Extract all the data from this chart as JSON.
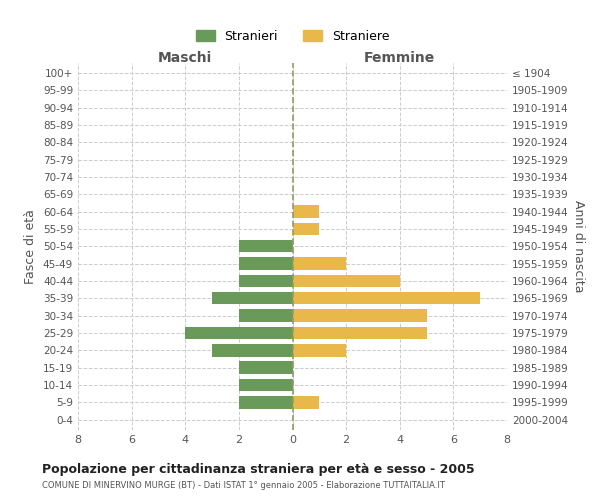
{
  "age_groups": [
    "0-4",
    "5-9",
    "10-14",
    "15-19",
    "20-24",
    "25-29",
    "30-34",
    "35-39",
    "40-44",
    "45-49",
    "50-54",
    "55-59",
    "60-64",
    "65-69",
    "70-74",
    "75-79",
    "80-84",
    "85-89",
    "90-94",
    "95-99",
    "100+"
  ],
  "birth_years": [
    "2000-2004",
    "1995-1999",
    "1990-1994",
    "1985-1989",
    "1980-1984",
    "1975-1979",
    "1970-1974",
    "1965-1969",
    "1960-1964",
    "1955-1959",
    "1950-1954",
    "1945-1949",
    "1940-1944",
    "1935-1939",
    "1930-1934",
    "1925-1929",
    "1920-1924",
    "1915-1919",
    "1910-1914",
    "1905-1909",
    "≤ 1904"
  ],
  "maschi": [
    0,
    2,
    2,
    2,
    3,
    4,
    2,
    3,
    2,
    2,
    2,
    0,
    0,
    0,
    0,
    0,
    0,
    0,
    0,
    0,
    0
  ],
  "femmine": [
    0,
    1,
    0,
    0,
    2,
    5,
    5,
    7,
    4,
    2,
    0,
    1,
    1,
    0,
    0,
    0,
    0,
    0,
    0,
    0,
    0
  ],
  "color_maschi": "#6a9a5a",
  "color_femmine": "#e8b84b",
  "title": "Popolazione per cittadinanza straniera per età e sesso - 2005",
  "subtitle": "COMUNE DI MINERVINO MURGE (BT) - Dati ISTAT 1° gennaio 2005 - Elaborazione TUTTAITALIA.IT",
  "ylabel_left": "Fasce di età",
  "ylabel_right": "Anni di nascita",
  "xlabel_left": "Maschi",
  "xlabel_right": "Femmine",
  "legend_maschi": "Stranieri",
  "legend_femmine": "Straniere",
  "xlim": 8,
  "background_color": "#ffffff",
  "grid_color": "#cccccc"
}
